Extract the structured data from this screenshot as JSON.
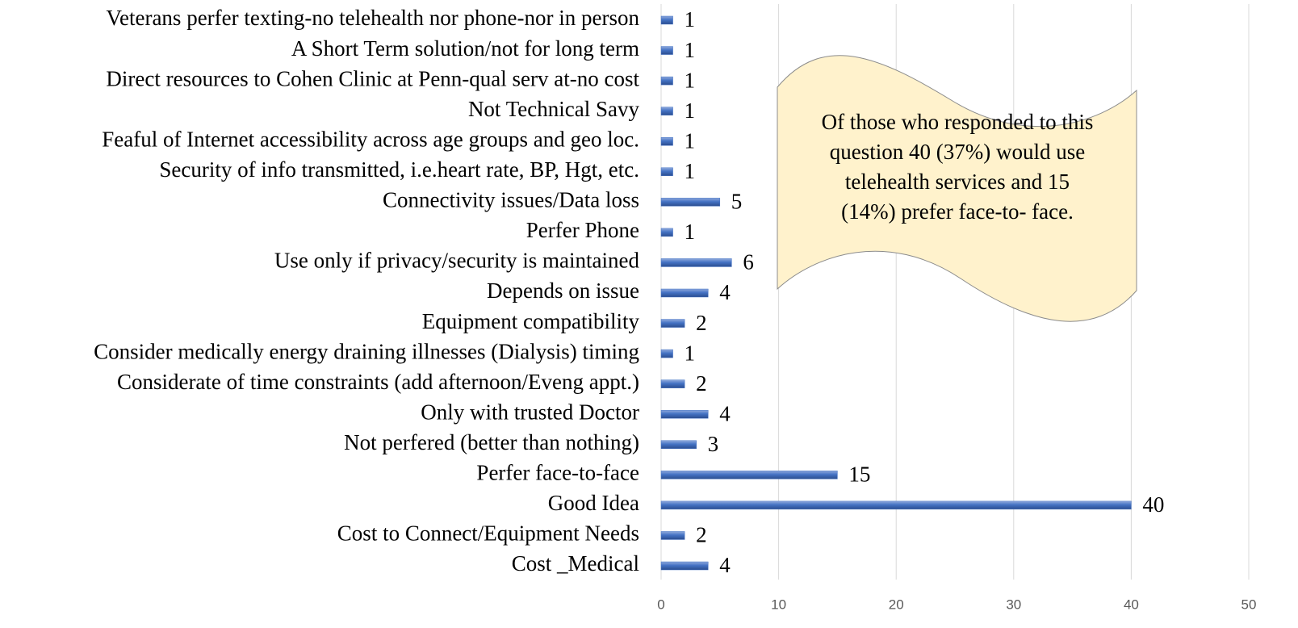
{
  "chart_data": {
    "type": "hbar",
    "categories": [
      "Cost _Medical",
      "Cost to Connect/Equipment Needs",
      "Good Idea",
      "Perfer face-to-face",
      "Not perfered (better than nothing)",
      "Only with trusted Doctor",
      "Considerate of time constraints (add afternoon/Eveng appt.)",
      "Consider medically energy draining illnesses (Dialysis) timing",
      "Equipment compatibility",
      "Depends on issue",
      "Use only if privacy/security is maintained",
      "Perfer Phone",
      "Connectivity issues/Data loss",
      "Security of info transmitted, i.e.heart rate, BP, Hgt, etc.",
      "Feaful of Internet accessibility across age groups and geo loc.",
      "Not Technical Savy",
      "Direct resources  to Cohen Clinic at Penn-qual serv at-no cost",
      "A Short Term solution/not for long term",
      "Veterans perfer texting-no telehealth nor phone-nor in person"
    ],
    "values": [
      4,
      2,
      40,
      15,
      3,
      4,
      2,
      1,
      2,
      4,
      6,
      1,
      5,
      1,
      1,
      1,
      1,
      1,
      1
    ],
    "color": "#4472c4",
    "xlim": [
      0,
      50
    ],
    "xticks": [
      0,
      10,
      20,
      30,
      40,
      50
    ],
    "grid": true,
    "annotation": [
      "Of those who responded to this",
      "question 40 (37%) would use",
      "telehealth services and 15",
      "(14%) prefer face-to- face."
    ]
  }
}
